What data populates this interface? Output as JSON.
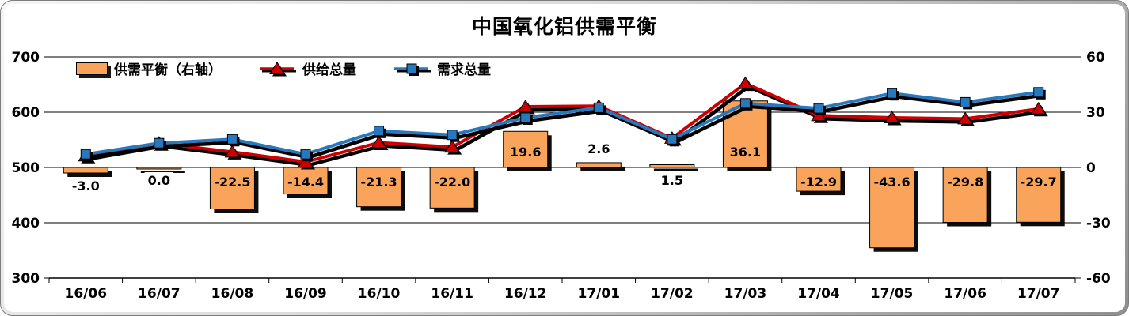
{
  "title": "中国氧化铝供需平衡",
  "legend": [
    {
      "label": "供需平衡（右轴）",
      "swatch": "bar",
      "color": "#F9A35B"
    },
    {
      "label": "供给总量",
      "swatch": "line-triangle",
      "color": "#CC0000"
    },
    {
      "label": "需求总量",
      "swatch": "line-square",
      "color": "#2878BE"
    }
  ],
  "chart_data": {
    "type": "combo",
    "title": "中国氧化铝供需平衡",
    "categories": [
      "16/06",
      "16/07",
      "16/08",
      "16/09",
      "16/10",
      "16/11",
      "16/12",
      "17/01",
      "17/02",
      "17/03",
      "17/04",
      "17/05",
      "17/06",
      "17/07"
    ],
    "series": [
      {
        "name": "供需平衡（右轴）",
        "type": "bar",
        "axis": "right",
        "color": "#F9A35B",
        "values": [
          -3.0,
          0.0,
          -22.5,
          -14.4,
          -21.3,
          -22.0,
          19.6,
          2.6,
          1.5,
          36.1,
          -12.9,
          -43.6,
          -29.8,
          -29.7
        ],
        "labels": [
          "-3.0",
          "0.0",
          "-22.5",
          "-14.4",
          "-21.3",
          "-22.0",
          "19.6",
          "2.6",
          "1.5",
          "36.1",
          "-12.9",
          "-43.6",
          "-29.8",
          "-29.7"
        ],
        "label_pos": [
          "below",
          "below",
          "inside",
          "inside",
          "inside",
          "inside",
          "inside",
          "above",
          "below",
          "inside",
          "inside",
          "inside",
          "inside",
          "inside"
        ]
      },
      {
        "name": "供给总量",
        "type": "line",
        "marker": "triangle",
        "axis": "left",
        "color": "#CC0000",
        "values": [
          521,
          544,
          528,
          510,
          545,
          537,
          610,
          611,
          553,
          652,
          594,
          590,
          588,
          606
        ]
      },
      {
        "name": "需求总量",
        "type": "line",
        "marker": "square",
        "axis": "left",
        "color": "#2878BE",
        "values": [
          524,
          544,
          551,
          524,
          566,
          559,
          590,
          608,
          551,
          616,
          607,
          634,
          618,
          636
        ]
      }
    ],
    "left_axis": {
      "min": 300,
      "max": 700,
      "ticks": [
        700,
        600,
        500,
        400,
        300
      ]
    },
    "right_axis": {
      "min": -60,
      "max": 60,
      "ticks": [
        60,
        30,
        0,
        -30,
        -60
      ]
    },
    "grid": true,
    "legend_position": "top-left"
  }
}
